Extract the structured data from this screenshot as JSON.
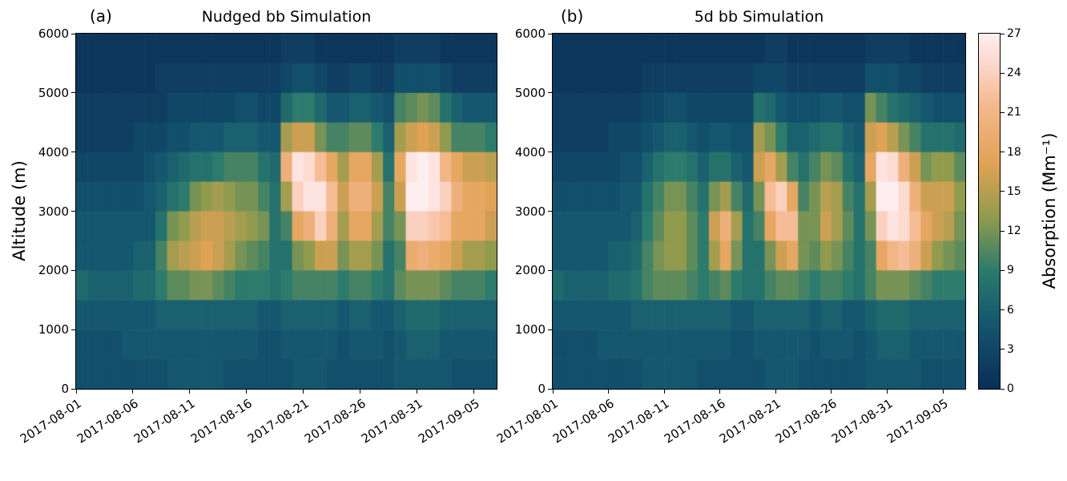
{
  "figure": {
    "background": "#ffffff",
    "y_axis_label": "Altitude (m)",
    "colorbar": {
      "label": "Absorption (Mm⁻¹)",
      "ticks": [
        0,
        3,
        6,
        9,
        12,
        15,
        18,
        21,
        24,
        27
      ],
      "vmin": 0,
      "vmax": 27
    },
    "colormap_stops": [
      {
        "t": 0.0,
        "c": "#0b2e59"
      },
      {
        "t": 0.18,
        "c": "#14566e"
      },
      {
        "t": 0.33,
        "c": "#2a7a6d"
      },
      {
        "t": 0.48,
        "c": "#8f9b4d"
      },
      {
        "t": 0.63,
        "c": "#e0a254"
      },
      {
        "t": 0.8,
        "c": "#f5b88e"
      },
      {
        "t": 0.92,
        "c": "#fcd9cf"
      },
      {
        "t": 1.0,
        "c": "#ffeef0"
      }
    ]
  },
  "chart_data": [
    {
      "type": "heatmap",
      "panel_label": "(a)",
      "title": "Nudged bb Simulation",
      "xlabel": "",
      "ylabel": "Altitude (m)",
      "values_unit": "Mm⁻¹",
      "x_range_days": [
        "2017-08-01",
        "2017-09-06"
      ],
      "x_tick_days": [
        0,
        5,
        10,
        15,
        20,
        25,
        30,
        35
      ],
      "x_tick_labels": [
        "2017-08-01",
        "2017-08-06",
        "2017-08-11",
        "2017-08-16",
        "2017-08-21",
        "2017-08-26",
        "2017-08-31",
        "2017-09-05"
      ],
      "y_ticks": [
        0,
        1000,
        2000,
        3000,
        4000,
        5000,
        6000
      ],
      "ylim": [
        0,
        6000
      ],
      "altitude_bin_m": 500,
      "time_step_days": 1,
      "grid_rows_top_to_bottom": [
        [
          1,
          1,
          1,
          1,
          1,
          1,
          1,
          1,
          1,
          1,
          1,
          1,
          1,
          1,
          1,
          1,
          1,
          1,
          2,
          2,
          2,
          1,
          1,
          1,
          1,
          1,
          1,
          1,
          2,
          2,
          2,
          2,
          1,
          1,
          1,
          1,
          1
        ],
        [
          1,
          1,
          1,
          1,
          1,
          1,
          1,
          2,
          2,
          2,
          2,
          2,
          2,
          2,
          2,
          2,
          2,
          2,
          3,
          4,
          4,
          3,
          2,
          2,
          3,
          3,
          2,
          2,
          4,
          4,
          4,
          4,
          3,
          2,
          2,
          2,
          2
        ],
        [
          2,
          2,
          2,
          2,
          2,
          2,
          2,
          2,
          3,
          3,
          3,
          3,
          3,
          3,
          4,
          4,
          3,
          3,
          7,
          9,
          9,
          7,
          5,
          5,
          6,
          6,
          5,
          4,
          10,
          11,
          12,
          11,
          8,
          6,
          5,
          5,
          5
        ],
        [
          2,
          2,
          2,
          2,
          2,
          3,
          3,
          3,
          4,
          4,
          5,
          5,
          5,
          6,
          6,
          6,
          5,
          5,
          14,
          16,
          16,
          12,
          10,
          10,
          11,
          11,
          9,
          6,
          14,
          16,
          17,
          16,
          13,
          10,
          10,
          10,
          9
        ],
        [
          3,
          3,
          3,
          3,
          3,
          3,
          4,
          5,
          6,
          7,
          8,
          8,
          9,
          10,
          10,
          10,
          8,
          7,
          20,
          26,
          25,
          22,
          18,
          14,
          18,
          18,
          14,
          8,
          18,
          26,
          27,
          26,
          21,
          18,
          16,
          16,
          15
        ],
        [
          4,
          4,
          4,
          4,
          4,
          4,
          5,
          6,
          8,
          9,
          12,
          13,
          14,
          13,
          12,
          12,
          10,
          8,
          14,
          24,
          26,
          26,
          22,
          16,
          20,
          20,
          16,
          10,
          16,
          27,
          27,
          26,
          24,
          20,
          18,
          18,
          17
        ],
        [
          5,
          5,
          5,
          5,
          5,
          5,
          5,
          8,
          12,
          13,
          15,
          16,
          16,
          15,
          14,
          13,
          12,
          8,
          10,
          18,
          20,
          24,
          20,
          14,
          18,
          18,
          14,
          10,
          12,
          24,
          24,
          23,
          22,
          18,
          18,
          18,
          16
        ],
        [
          5,
          5,
          5,
          5,
          5,
          6,
          6,
          10,
          14,
          15,
          16,
          17,
          16,
          14,
          12,
          11,
          10,
          8,
          8,
          12,
          13,
          16,
          16,
          12,
          14,
          14,
          12,
          8,
          10,
          19,
          20,
          19,
          18,
          16,
          14,
          14,
          13
        ],
        [
          7,
          6,
          6,
          6,
          6,
          7,
          7,
          9,
          11,
          11,
          12,
          12,
          11,
          10,
          9,
          9,
          9,
          8,
          9,
          10,
          10,
          10,
          10,
          9,
          10,
          10,
          9,
          8,
          11,
          12,
          12,
          12,
          11,
          10,
          10,
          10,
          9
        ],
        [
          5,
          5,
          5,
          5,
          5,
          5,
          5,
          6,
          6,
          6,
          6,
          6,
          6,
          6,
          6,
          6,
          5,
          5,
          6,
          6,
          6,
          6,
          6,
          5,
          6,
          6,
          5,
          5,
          6,
          7,
          7,
          7,
          6,
          6,
          6,
          6,
          6
        ],
        [
          4,
          4,
          4,
          4,
          5,
          5,
          5,
          5,
          5,
          5,
          5,
          5,
          5,
          5,
          5,
          5,
          4,
          4,
          5,
          5,
          5,
          5,
          5,
          4,
          5,
          5,
          5,
          4,
          5,
          6,
          6,
          6,
          5,
          5,
          5,
          5,
          5
        ],
        [
          4,
          4,
          4,
          4,
          4,
          4,
          4,
          4,
          5,
          5,
          5,
          5,
          5,
          4,
          4,
          4,
          4,
          4,
          4,
          5,
          5,
          5,
          4,
          4,
          4,
          4,
          4,
          4,
          5,
          5,
          5,
          5,
          5,
          4,
          4,
          4,
          4
        ]
      ]
    },
    {
      "type": "heatmap",
      "panel_label": "(b)",
      "title": "5d bb Simulation",
      "xlabel": "",
      "ylabel": "Altitude (m)",
      "values_unit": "Mm⁻¹",
      "x_range_days": [
        "2017-08-01",
        "2017-09-06"
      ],
      "x_tick_days": [
        0,
        5,
        10,
        15,
        20,
        25,
        30,
        35
      ],
      "x_tick_labels": [
        "2017-08-01",
        "2017-08-06",
        "2017-08-11",
        "2017-08-16",
        "2017-08-21",
        "2017-08-26",
        "2017-08-31",
        "2017-09-05"
      ],
      "y_ticks": [
        0,
        1000,
        2000,
        3000,
        4000,
        5000,
        6000
      ],
      "ylim": [
        0,
        6000
      ],
      "altitude_bin_m": 500,
      "time_step_days": 1,
      "grid_rows_top_to_bottom": [
        [
          1,
          1,
          1,
          1,
          1,
          1,
          1,
          1,
          1,
          1,
          1,
          1,
          1,
          1,
          1,
          1,
          1,
          1,
          1,
          2,
          2,
          1,
          1,
          1,
          1,
          1,
          1,
          1,
          2,
          2,
          2,
          2,
          1,
          1,
          1,
          1,
          1
        ],
        [
          1,
          1,
          1,
          1,
          1,
          1,
          1,
          1,
          2,
          2,
          2,
          2,
          2,
          2,
          2,
          2,
          2,
          2,
          3,
          3,
          3,
          2,
          2,
          2,
          2,
          2,
          2,
          2,
          4,
          4,
          4,
          3,
          3,
          2,
          2,
          2,
          2
        ],
        [
          2,
          2,
          2,
          2,
          2,
          2,
          2,
          2,
          3,
          3,
          4,
          4,
          3,
          3,
          3,
          3,
          3,
          3,
          8,
          7,
          5,
          4,
          4,
          4,
          5,
          5,
          4,
          4,
          12,
          10,
          8,
          7,
          6,
          5,
          4,
          4,
          4
        ],
        [
          2,
          2,
          2,
          2,
          2,
          3,
          3,
          3,
          4,
          5,
          6,
          6,
          5,
          4,
          5,
          5,
          4,
          4,
          14,
          12,
          9,
          6,
          6,
          7,
          8,
          8,
          6,
          5,
          16,
          17,
          15,
          12,
          10,
          8,
          8,
          8,
          7
        ],
        [
          3,
          3,
          3,
          3,
          3,
          3,
          4,
          4,
          6,
          8,
          9,
          9,
          8,
          6,
          8,
          8,
          6,
          5,
          16,
          18,
          14,
          10,
          8,
          10,
          12,
          11,
          8,
          6,
          18,
          26,
          25,
          20,
          16,
          12,
          13,
          13,
          11
        ],
        [
          4,
          4,
          4,
          4,
          4,
          4,
          5,
          5,
          8,
          10,
          12,
          12,
          10,
          8,
          12,
          14,
          10,
          7,
          12,
          22,
          24,
          18,
          10,
          12,
          15,
          14,
          10,
          8,
          14,
          27,
          27,
          25,
          20,
          16,
          16,
          16,
          13
        ],
        [
          5,
          5,
          5,
          5,
          5,
          5,
          5,
          6,
          9,
          11,
          13,
          13,
          11,
          9,
          16,
          20,
          14,
          8,
          10,
          18,
          22,
          22,
          12,
          12,
          16,
          14,
          11,
          8,
          12,
          24,
          26,
          25,
          22,
          18,
          16,
          15,
          12
        ],
        [
          5,
          5,
          5,
          5,
          5,
          6,
          6,
          7,
          10,
          12,
          13,
          13,
          11,
          9,
          14,
          18,
          12,
          8,
          8,
          12,
          16,
          18,
          12,
          11,
          13,
          12,
          10,
          8,
          10,
          18,
          21,
          22,
          20,
          16,
          13,
          12,
          11
        ],
        [
          7,
          6,
          6,
          6,
          6,
          7,
          7,
          8,
          10,
          11,
          11,
          11,
          10,
          9,
          10,
          11,
          9,
          8,
          8,
          10,
          11,
          11,
          10,
          9,
          10,
          10,
          9,
          8,
          10,
          12,
          12,
          12,
          11,
          10,
          9,
          9,
          9
        ],
        [
          5,
          5,
          5,
          5,
          5,
          5,
          5,
          6,
          6,
          6,
          6,
          6,
          6,
          6,
          6,
          6,
          5,
          5,
          6,
          6,
          6,
          6,
          6,
          5,
          6,
          6,
          5,
          5,
          6,
          7,
          7,
          7,
          6,
          6,
          6,
          6,
          6
        ],
        [
          4,
          4,
          4,
          4,
          5,
          5,
          5,
          5,
          5,
          5,
          5,
          5,
          5,
          5,
          5,
          5,
          4,
          4,
          5,
          5,
          5,
          5,
          5,
          4,
          5,
          5,
          5,
          4,
          5,
          6,
          6,
          6,
          5,
          5,
          5,
          5,
          5
        ],
        [
          4,
          4,
          4,
          4,
          4,
          4,
          4,
          4,
          5,
          5,
          5,
          5,
          5,
          4,
          4,
          4,
          4,
          4,
          4,
          5,
          5,
          5,
          4,
          4,
          4,
          4,
          4,
          4,
          5,
          5,
          5,
          5,
          5,
          4,
          4,
          4,
          4
        ]
      ]
    }
  ]
}
